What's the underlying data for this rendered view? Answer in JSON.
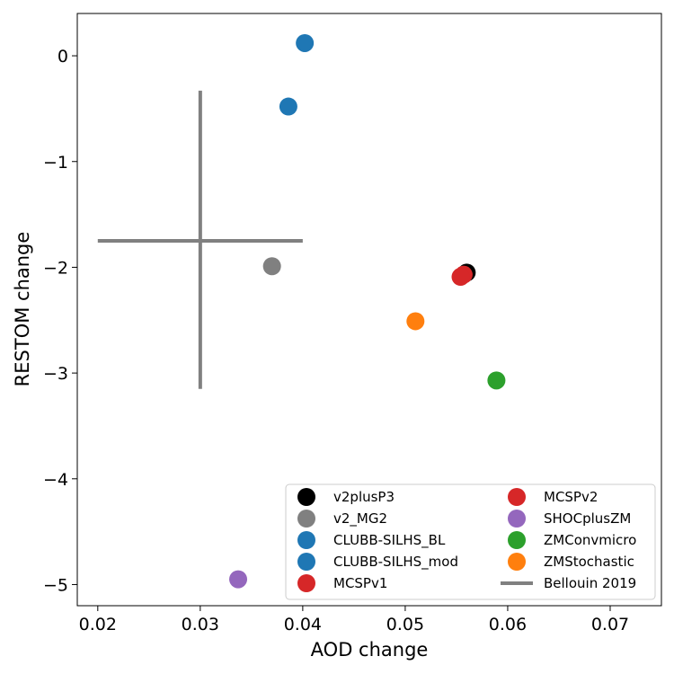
{
  "chart_data": {
    "type": "scatter",
    "xlabel": "AOD change",
    "ylabel": "RESTOM change",
    "xlim": [
      0.018,
      0.075
    ],
    "ylim": [
      -5.2,
      0.4
    ],
    "xticks": [
      0.02,
      0.03,
      0.04,
      0.05,
      0.06,
      0.07
    ],
    "xtick_labels": [
      "0.02",
      "0.03",
      "0.04",
      "0.05",
      "0.06",
      "0.07"
    ],
    "yticks": [
      0,
      -1,
      -2,
      -3,
      -4,
      -5
    ],
    "ytick_labels": [
      "0",
      "−1",
      "−2",
      "−3",
      "−4",
      "−5"
    ],
    "grid": false,
    "legend_position": "lower-right",
    "legend_columns": 2,
    "series": [
      {
        "name": "v2plusP3",
        "color": "#000000",
        "x": 0.056,
        "y": -2.05
      },
      {
        "name": "v2_MG2",
        "color": "#808080",
        "x": 0.037,
        "y": -1.99
      },
      {
        "name": "CLUBB-SILHS_BL",
        "color": "#1f77b4",
        "x": 0.0402,
        "y": 0.12
      },
      {
        "name": "CLUBB-SILHS_mod",
        "color": "#1f77b4",
        "x": 0.0386,
        "y": -0.48
      },
      {
        "name": "MCSPv1",
        "color": "#d62728",
        "x": 0.0557,
        "y": -2.07
      },
      {
        "name": "MCSPv2",
        "color": "#d62728",
        "x": 0.0554,
        "y": -2.09
      },
      {
        "name": "SHOCplusZM",
        "color": "#9467bd",
        "x": 0.0337,
        "y": -4.95
      },
      {
        "name": "ZMConvmicro",
        "color": "#2ca02c",
        "x": 0.0589,
        "y": -3.07
      },
      {
        "name": "ZMStochastic",
        "color": "#ff7f0e",
        "x": 0.051,
        "y": -2.51
      }
    ],
    "reference": {
      "name": "Bellouin 2019",
      "color": "#808080",
      "x_center": 0.03,
      "y_center": -1.75,
      "x_range": [
        0.02,
        0.04
      ],
      "y_range": [
        -3.15,
        -0.33
      ]
    }
  }
}
